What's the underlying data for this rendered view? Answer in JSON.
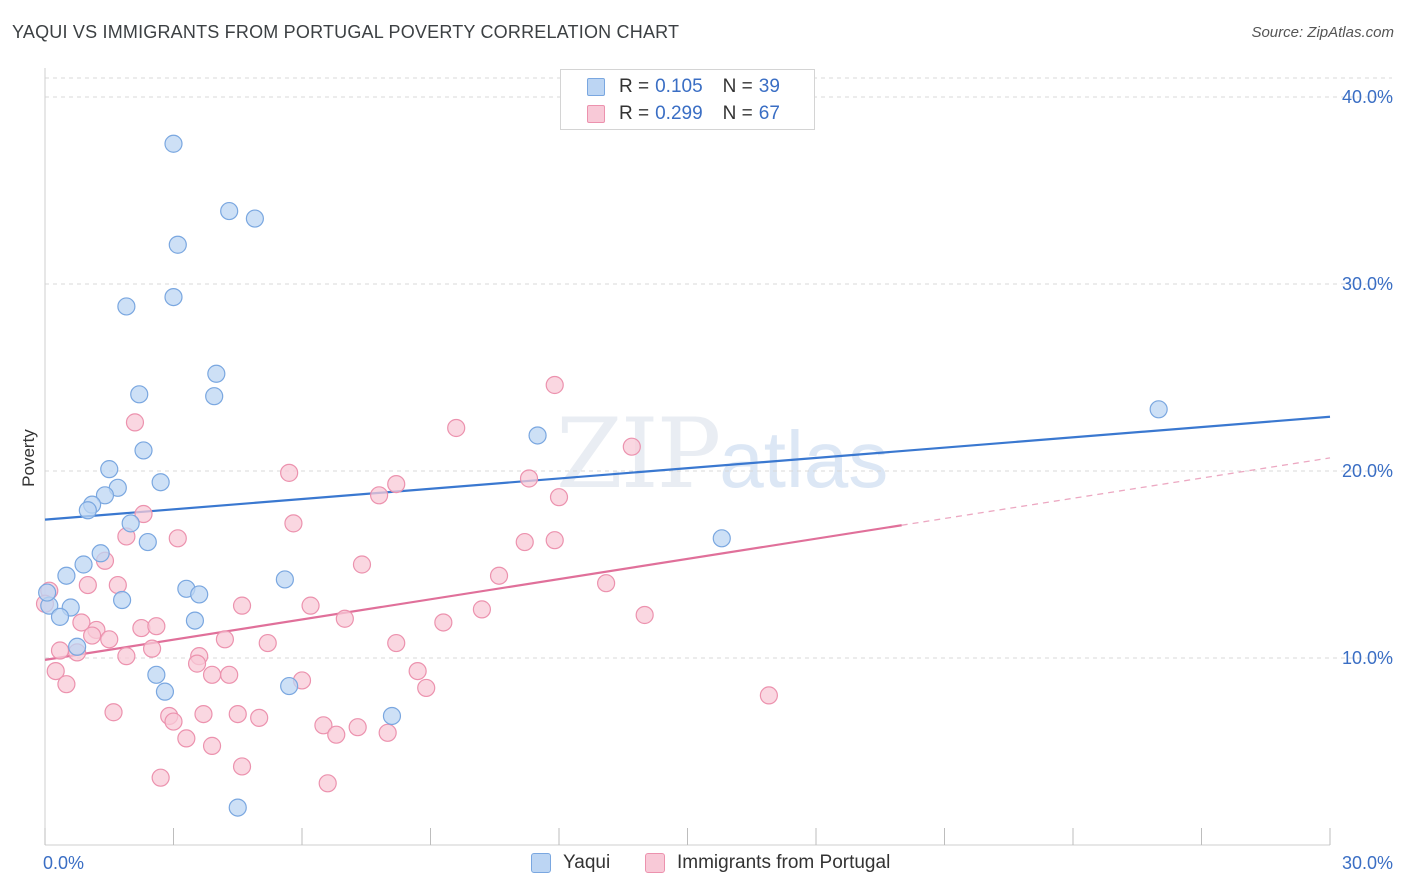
{
  "header": {
    "title": "YAQUI VS IMMIGRANTS FROM PORTUGAL POVERTY CORRELATION CHART",
    "source": "Source: ZipAtlas.com"
  },
  "watermark": {
    "zip": "ZIP",
    "atlas": "atlas"
  },
  "legend": {
    "rows": [
      {
        "r_label": "R =",
        "r_value": "0.105",
        "n_label": "N =",
        "n_value": "39",
        "color": "#a9c8f0",
        "border": "#7aa7e0"
      },
      {
        "r_label": "R =",
        "r_value": "0.299",
        "n_label": "N =",
        "n_value": "67",
        "color": "#f8c3d3",
        "border": "#ec92ae"
      }
    ]
  },
  "chart_data": {
    "type": "scatter",
    "title": "YAQUI VS IMMIGRANTS FROM PORTUGAL POVERTY CORRELATION CHART",
    "xlabel": "",
    "ylabel": "Poverty",
    "xlim": [
      0,
      30
    ],
    "ylim": [
      0,
      40
    ],
    "x_tick_labels": [
      "0.0%",
      "30.0%"
    ],
    "y_ticks": [
      10,
      20,
      30,
      40
    ],
    "y_tick_labels": [
      "10.0%",
      "20.0%",
      "30.0%",
      "40.0%"
    ],
    "grid": true,
    "colors": {
      "yaqui": "#3a78d0",
      "portugal": "#e0709a",
      "tick": "#3a6ec4"
    },
    "series": [
      {
        "name": "Yaqui",
        "fill": "#bcd5f3",
        "stroke": "#7aa7e0",
        "trend": {
          "x0": 0,
          "y0": 17.4,
          "x1": 30,
          "y1": 22.9,
          "solid_to": 30
        },
        "points": [
          [
            3.0,
            37.5
          ],
          [
            4.3,
            33.9
          ],
          [
            4.9,
            33.5
          ],
          [
            3.1,
            32.1
          ],
          [
            3.0,
            29.3
          ],
          [
            1.9,
            28.8
          ],
          [
            4.0,
            25.2
          ],
          [
            2.2,
            24.1
          ],
          [
            3.95,
            24.0
          ],
          [
            11.5,
            21.9
          ],
          [
            26.0,
            23.3
          ],
          [
            2.3,
            21.1
          ],
          [
            1.5,
            20.1
          ],
          [
            2.7,
            19.4
          ],
          [
            1.7,
            19.1
          ],
          [
            1.4,
            18.7
          ],
          [
            1.1,
            18.2
          ],
          [
            1.0,
            17.9
          ],
          [
            2.0,
            17.2
          ],
          [
            2.4,
            16.2
          ],
          [
            15.8,
            16.4
          ],
          [
            1.3,
            15.6
          ],
          [
            0.9,
            15.0
          ],
          [
            0.5,
            14.4
          ],
          [
            5.6,
            14.2
          ],
          [
            3.3,
            13.7
          ],
          [
            3.6,
            13.4
          ],
          [
            1.8,
            13.1
          ],
          [
            0.1,
            12.8
          ],
          [
            0.6,
            12.7
          ],
          [
            0.35,
            12.2
          ],
          [
            3.5,
            12.0
          ],
          [
            0.75,
            10.6
          ],
          [
            2.6,
            9.1
          ],
          [
            2.8,
            8.2
          ],
          [
            5.7,
            8.5
          ],
          [
            8.1,
            6.9
          ],
          [
            4.5,
            2.0
          ],
          [
            0.05,
            13.5
          ]
        ]
      },
      {
        "name": "Immigrants from Portugal",
        "fill": "#f8c9d7",
        "stroke": "#ec92ae",
        "trend": {
          "x0": 0,
          "y0": 9.9,
          "x1": 30,
          "y1": 20.7,
          "solid_to": 20
        },
        "points": [
          [
            11.9,
            24.6
          ],
          [
            9.6,
            22.3
          ],
          [
            2.1,
            22.6
          ],
          [
            13.7,
            21.3
          ],
          [
            5.7,
            19.9
          ],
          [
            11.3,
            19.6
          ],
          [
            8.2,
            19.3
          ],
          [
            7.8,
            18.7
          ],
          [
            12.0,
            18.6
          ],
          [
            2.3,
            17.7
          ],
          [
            5.8,
            17.2
          ],
          [
            1.9,
            16.5
          ],
          [
            3.1,
            16.4
          ],
          [
            11.2,
            16.2
          ],
          [
            11.9,
            16.3
          ],
          [
            1.4,
            15.2
          ],
          [
            7.4,
            15.0
          ],
          [
            10.6,
            14.4
          ],
          [
            1.0,
            13.9
          ],
          [
            1.7,
            13.9
          ],
          [
            13.1,
            14.0
          ],
          [
            4.6,
            12.8
          ],
          [
            6.2,
            12.8
          ],
          [
            10.2,
            12.6
          ],
          [
            14.0,
            12.3
          ],
          [
            7.0,
            12.1
          ],
          [
            9.3,
            11.9
          ],
          [
            0.85,
            11.9
          ],
          [
            1.2,
            11.5
          ],
          [
            2.25,
            11.6
          ],
          [
            1.1,
            11.2
          ],
          [
            2.6,
            11.7
          ],
          [
            1.5,
            11.0
          ],
          [
            4.2,
            11.0
          ],
          [
            5.2,
            10.8
          ],
          [
            8.2,
            10.8
          ],
          [
            2.5,
            10.5
          ],
          [
            0.35,
            10.4
          ],
          [
            0.75,
            10.3
          ],
          [
            1.9,
            10.1
          ],
          [
            3.6,
            10.1
          ],
          [
            3.55,
            9.7
          ],
          [
            0.25,
            9.3
          ],
          [
            8.7,
            9.3
          ],
          [
            3.9,
            9.1
          ],
          [
            4.3,
            9.1
          ],
          [
            6.0,
            8.8
          ],
          [
            8.9,
            8.4
          ],
          [
            16.9,
            8.0
          ],
          [
            0.5,
            8.6
          ],
          [
            1.6,
            7.1
          ],
          [
            2.9,
            6.9
          ],
          [
            3.0,
            6.6
          ],
          [
            3.7,
            7.0
          ],
          [
            4.5,
            7.0
          ],
          [
            5.0,
            6.8
          ],
          [
            6.5,
            6.4
          ],
          [
            7.3,
            6.3
          ],
          [
            8.0,
            6.0
          ],
          [
            6.8,
            5.9
          ],
          [
            3.3,
            5.7
          ],
          [
            3.9,
            5.3
          ],
          [
            4.6,
            4.2
          ],
          [
            2.7,
            3.6
          ],
          [
            6.6,
            3.3
          ],
          [
            0.1,
            13.6
          ],
          [
            0.0,
            12.9
          ]
        ]
      }
    ],
    "x_axis_ticks": [
      0,
      3,
      6,
      9,
      12,
      15,
      18,
      21,
      24,
      27,
      30
    ]
  },
  "bottom_legend": {
    "items": [
      {
        "label": "Yaqui"
      },
      {
        "label": "Immigrants from Portugal"
      }
    ]
  }
}
